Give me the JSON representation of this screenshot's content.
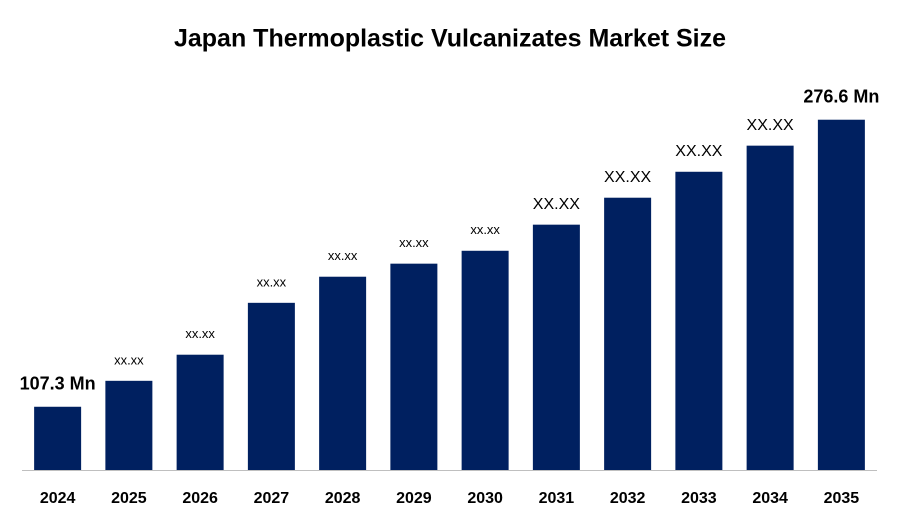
{
  "chart_data": {
    "type": "bar",
    "title": "Japan Thermoplastic Vulcanizates Market Size",
    "categories": [
      "2024",
      "2025",
      "2026",
      "2027",
      "2028",
      "2029",
      "2030",
      "2031",
      "2032",
      "2033",
      "2034",
      "2035"
    ],
    "values": [
      107.3,
      122.6,
      138.0,
      168.6,
      184.0,
      191.7,
      199.3,
      214.7,
      230.6,
      245.9,
      261.3,
      276.6
    ],
    "value_labels": [
      "107.3 Mn",
      "xx.xx",
      "xx.xx",
      "xx.xx",
      "xx.xx",
      "xx.xx",
      "xx.xx",
      "XX.XX",
      "XX.XX",
      "XX.XX",
      "XX.XX",
      "276.6 Mn"
    ],
    "color": "#002060",
    "ylim": [
      70,
      290
    ]
  }
}
